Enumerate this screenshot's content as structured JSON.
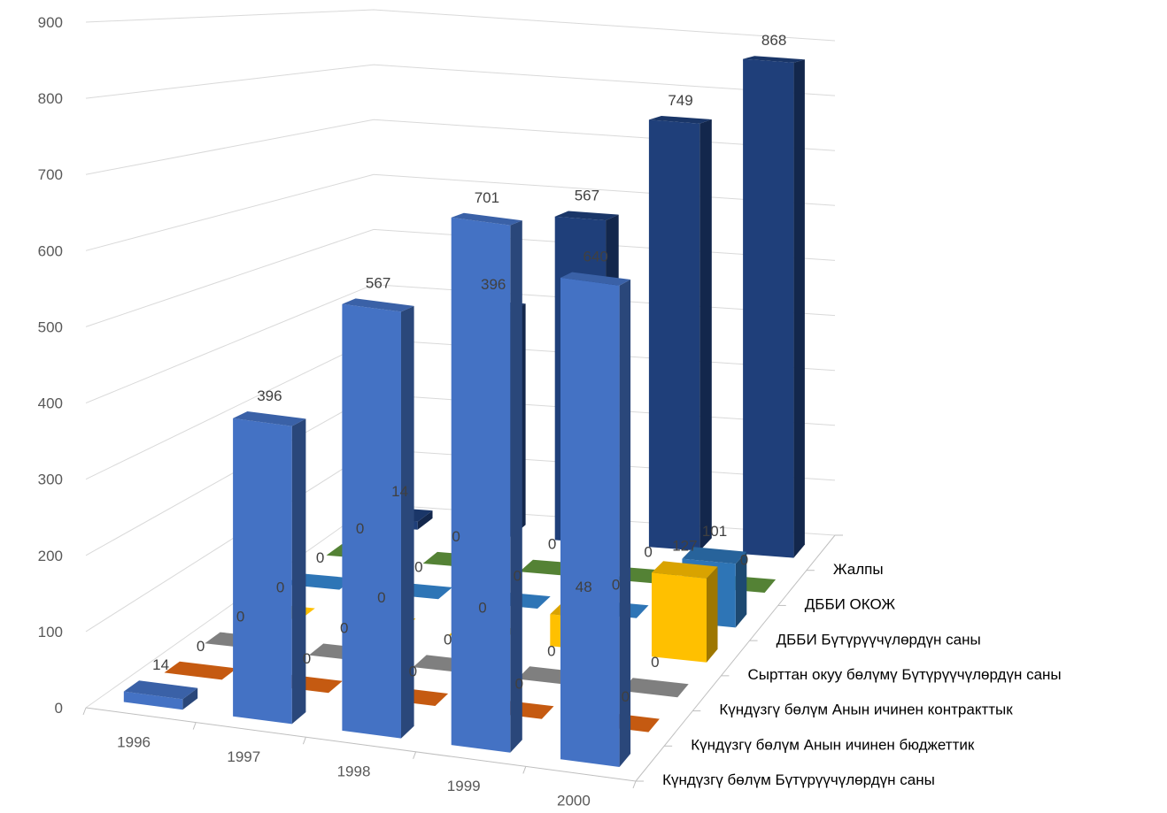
{
  "chart_data": {
    "type": "bar",
    "subtype": "3d-column",
    "title": "",
    "xlabel": "",
    "ylabel": "",
    "categories": [
      "1996",
      "1997",
      "1998",
      "1999",
      "2000"
    ],
    "ylim": [
      0,
      900
    ],
    "yticks": [
      0,
      100,
      200,
      300,
      400,
      500,
      600,
      700,
      800,
      900
    ],
    "grid": true,
    "legend": "none",
    "series": [
      {
        "name": "Күндүзгү бөлүм Бүтүрүүчүлөрдүн саны",
        "color": "#4472c4",
        "values": [
          14,
          396,
          567,
          701,
          640
        ],
        "labels": [
          "14",
          "396",
          "567",
          "701",
          "640"
        ]
      },
      {
        "name": "Күндүзгү бөлүм Анын ичинен бюджеттик",
        "color": "#c55a11",
        "values": [
          0,
          0,
          0,
          0,
          0
        ],
        "labels": [
          "0",
          "0",
          "0",
          "0",
          "0"
        ]
      },
      {
        "name": "Күндүзгү бөлүм Анын ичинен контракттык",
        "color": "#7f7f7f",
        "values": [
          0,
          0,
          0,
          0,
          0
        ],
        "labels": [
          "0",
          "0",
          "0",
          "0",
          "0"
        ]
      },
      {
        "name": "Сырттан окуу бөлүмү Бүтүрүүчүлөрдүн саны",
        "color": "#ffc000",
        "values": [
          0,
          0,
          0,
          48,
          127
        ],
        "labels": [
          "0",
          "0",
          "0",
          "48",
          "127"
        ]
      },
      {
        "name": "ДББИ Бүтүрүүчүлөрдүн саны",
        "color": "#2e75b6",
        "values": [
          0,
          0,
          0,
          0,
          101
        ],
        "labels": [
          "0",
          "0",
          "0",
          "0",
          "101"
        ]
      },
      {
        "name": "ДББИ ОКОЖ",
        "color": "#548235",
        "values": [
          0,
          0,
          0,
          0,
          0
        ],
        "labels": [
          "0",
          "0",
          "0",
          "0",
          "0"
        ]
      },
      {
        "name": "Жалпы",
        "color": "#1f3f7a",
        "values": [
          14,
          396,
          567,
          749,
          868
        ],
        "labels": [
          "14",
          "396",
          "567",
          "749",
          "868"
        ]
      }
    ]
  }
}
